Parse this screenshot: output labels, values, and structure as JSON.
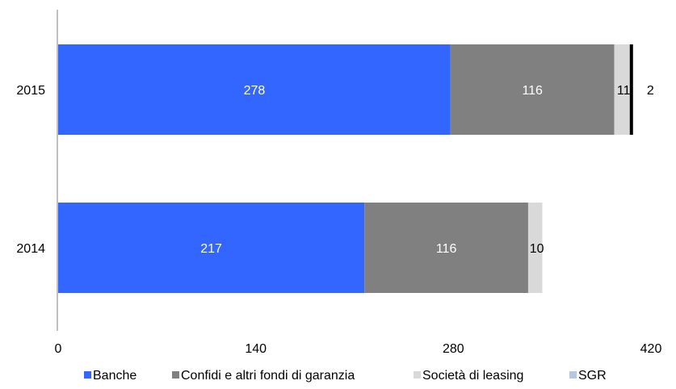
{
  "chart_data": {
    "type": "bar",
    "orientation": "horizontal",
    "stacked": true,
    "categories": [
      "2015",
      "2014"
    ],
    "series": [
      {
        "name": "Banche",
        "values": [
          278,
          217
        ],
        "color": "#3366ff",
        "label_color": "#ffffff"
      },
      {
        "name": "Confidi e altri fondi di garanzia",
        "values": [
          116,
          116
        ],
        "color": "#808080",
        "label_color": "#ffffff"
      },
      {
        "name": "Società di leasing",
        "values": [
          11,
          10
        ],
        "color": "#d9d9d9",
        "label_color": "#000000"
      },
      {
        "name": "SGR",
        "values": [
          2,
          0
        ],
        "color": "#000000",
        "label_color": "#000000"
      }
    ],
    "data_labels": [
      [
        "278",
        "217"
      ],
      [
        "116",
        "116"
      ],
      [
        "11",
        "10"
      ],
      [
        "2",
        ""
      ]
    ],
    "xlim": [
      0,
      420
    ],
    "x_ticks": [
      0,
      140,
      280,
      420
    ],
    "legend_position": "bottom",
    "legend_colors": [
      "#3366ff",
      "#808080",
      "#d9d9d9",
      "#b4c7e7"
    ],
    "grid": false
  }
}
